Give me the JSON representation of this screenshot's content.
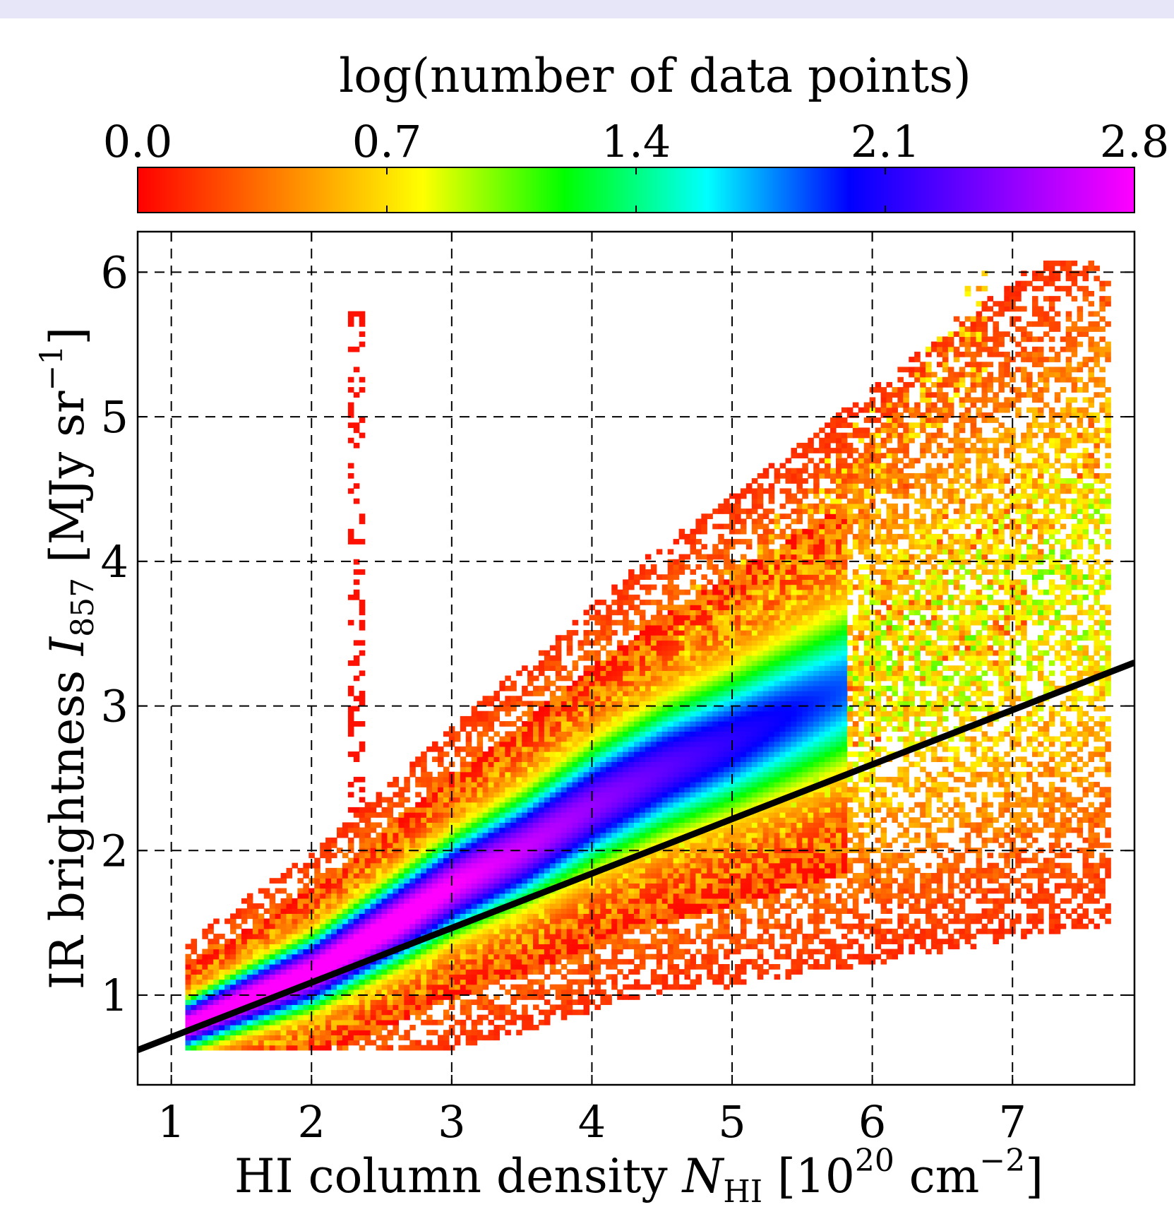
{
  "chart_data": {
    "type": "heatmap",
    "title": "",
    "xlabel": {
      "main": "HI column density ",
      "symbol": "N",
      "symbol_sub": "HI",
      "unit_open": " [10",
      "unit_exp": "20",
      "unit_mid": " cm",
      "unit_exp2": "−2",
      "unit_close": "]"
    },
    "ylabel": {
      "main": "IR brightness ",
      "symbol": "I",
      "symbol_sub": "857",
      "unit_open": " [MJy sr",
      "unit_exp": "−1",
      "unit_close": "]"
    },
    "xlim": [
      0.76,
      7.87
    ],
    "ylim": [
      0.38,
      6.28
    ],
    "xticks": [
      1,
      2,
      3,
      4,
      5,
      6,
      7
    ],
    "yticks": [
      1,
      2,
      3,
      4,
      5,
      6
    ],
    "xtick_labels": [
      "1",
      "2",
      "3",
      "4",
      "5",
      "6",
      "7"
    ],
    "ytick_labels": [
      "1",
      "2",
      "3",
      "4",
      "5",
      "6"
    ],
    "grid": true,
    "colorbar": {
      "label": "log(number of data points)",
      "ticks": [
        0.0,
        0.7,
        1.4,
        2.1,
        2.8
      ],
      "tick_labels": [
        "0.0",
        "0.7",
        "1.4",
        "2.1",
        "2.8"
      ],
      "range": [
        0.0,
        2.8
      ],
      "colormap": "gist_rainbow_r",
      "placement": "top",
      "colors": [
        "#ff0000",
        "#ff8000",
        "#ffff00",
        "#00ff00",
        "#00ffff",
        "#0000ff",
        "#8000ff",
        "#ff00ff"
      ]
    },
    "density": {
      "ridge_x": [
        1.1,
        1.5,
        2.0,
        2.6,
        3.0,
        3.5,
        4.0,
        4.5,
        5.0
      ],
      "ridge_y": [
        0.78,
        0.95,
        1.15,
        1.5,
        1.75,
        2.0,
        2.3,
        2.55,
        2.75
      ],
      "peak_log_count": 2.8,
      "sparse_vertical_streak": {
        "x": 2.3,
        "ymin": 2.2,
        "ymax": 5.7
      },
      "upper_sparse_arms": [
        {
          "x": [
            4.6,
            5.5,
            6.2,
            6.8
          ],
          "y": [
            3.3,
            4.1,
            4.9,
            5.6
          ]
        },
        {
          "x": [
            5.5,
            6.4,
            7.0,
            7.6
          ],
          "y": [
            3.2,
            3.9,
            4.3,
            4.8
          ]
        },
        {
          "x": [
            5.2,
            6.0,
            6.6,
            7.1
          ],
          "y": [
            2.7,
            3.1,
            3.4,
            3.7
          ]
        }
      ]
    },
    "fit_line": {
      "x": [
        0.76,
        7.87
      ],
      "y": [
        0.62,
        3.3
      ],
      "color": "#000000"
    }
  }
}
